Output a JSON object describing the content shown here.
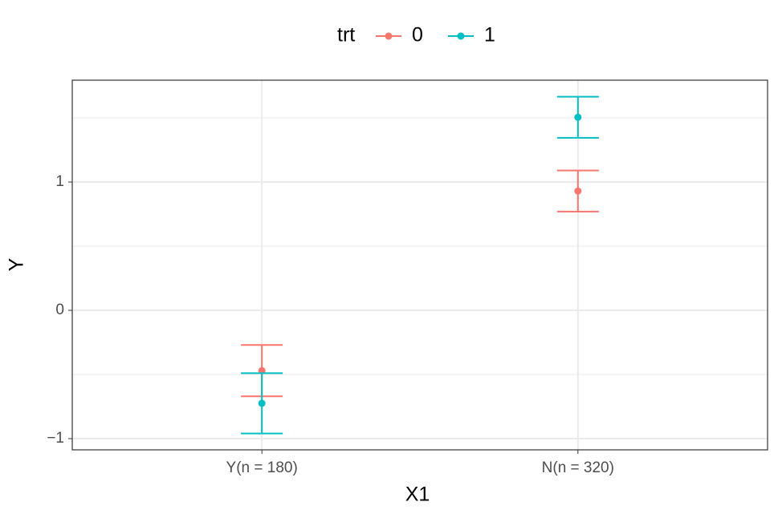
{
  "chart_data": {
    "type": "errorbar",
    "x_label": "X1",
    "y_label": "Y",
    "legend_title": "trt",
    "categories": [
      "Y(n = 180)",
      "N(n = 320)"
    ],
    "series": [
      {
        "name": "0",
        "color": "#F8766D",
        "values": [
          -0.47,
          0.93
        ],
        "errors": [
          0.2,
          0.16
        ]
      },
      {
        "name": "1",
        "color": "#00BFC4",
        "values": [
          -0.725,
          1.505
        ],
        "errors": [
          0.235,
          0.16
        ]
      }
    ],
    "ylim": [
      -1.0875,
      1.794
    ],
    "yticks": [
      {
        "value": -1,
        "label": "−1"
      },
      0,
      1
    ],
    "y_minor_grid": [
      -0.5,
      0.5,
      1.5
    ],
    "grid": true,
    "legend_position": "top"
  }
}
